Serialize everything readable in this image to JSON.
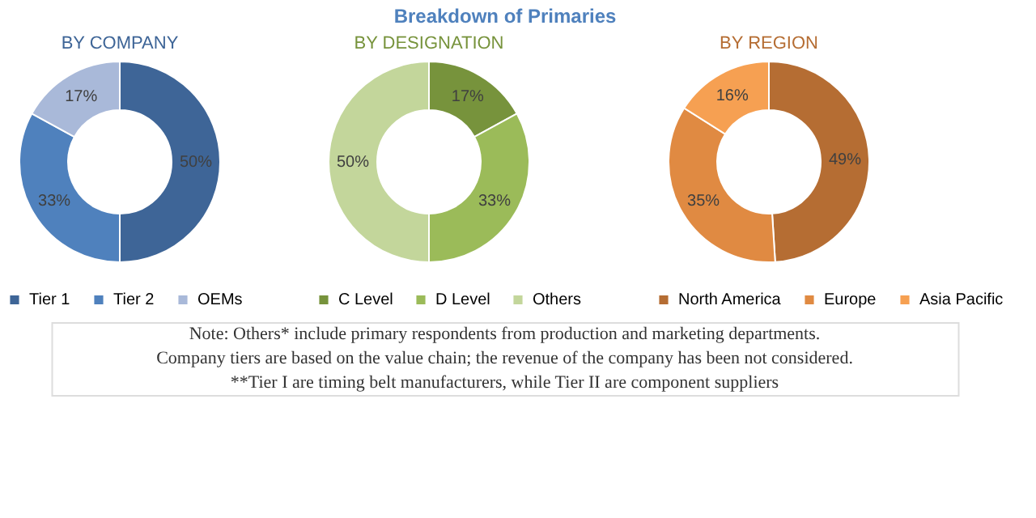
{
  "chart_data": [
    {
      "type": "other",
      "title": "Breakdown of Primaries",
      "annotations": [
        "Note: Others* include primary respondents from production and marketing departments.",
        "Company tiers are based on the value chain; the revenue of the company has been not considered.",
        "**Tier I are timing belt manufacturers, while Tier II are component suppliers"
      ]
    },
    {
      "type": "donut",
      "title": "BY COMPANY",
      "categories": [
        "Tier 1",
        "Tier 2",
        "OEMs"
      ],
      "values": [
        50,
        33,
        17
      ],
      "colors": [
        "#3e6597",
        "#4f81bd",
        "#a9b9d9"
      ],
      "value_labels": [
        "50%",
        "33%",
        "17%"
      ],
      "legend": "bottom"
    },
    {
      "type": "donut",
      "title": "BY DESIGNATION",
      "categories": [
        "C Level",
        "D Level",
        "Others"
      ],
      "values": [
        17,
        33,
        50
      ],
      "colors": [
        "#77933c",
        "#9bbb59",
        "#c3d69b"
      ],
      "value_labels": [
        "17%",
        "33%",
        "50%"
      ],
      "legend": "bottom"
    },
    {
      "type": "donut",
      "title": "BY REGION",
      "categories": [
        "North America",
        "Europe",
        "Asia Pacific"
      ],
      "values": [
        49,
        35,
        16
      ],
      "colors": [
        "#b56d33",
        "#e08a42",
        "#f6a052"
      ],
      "value_labels": [
        "49%",
        "35%",
        "16%"
      ],
      "legend": "bottom"
    }
  ]
}
